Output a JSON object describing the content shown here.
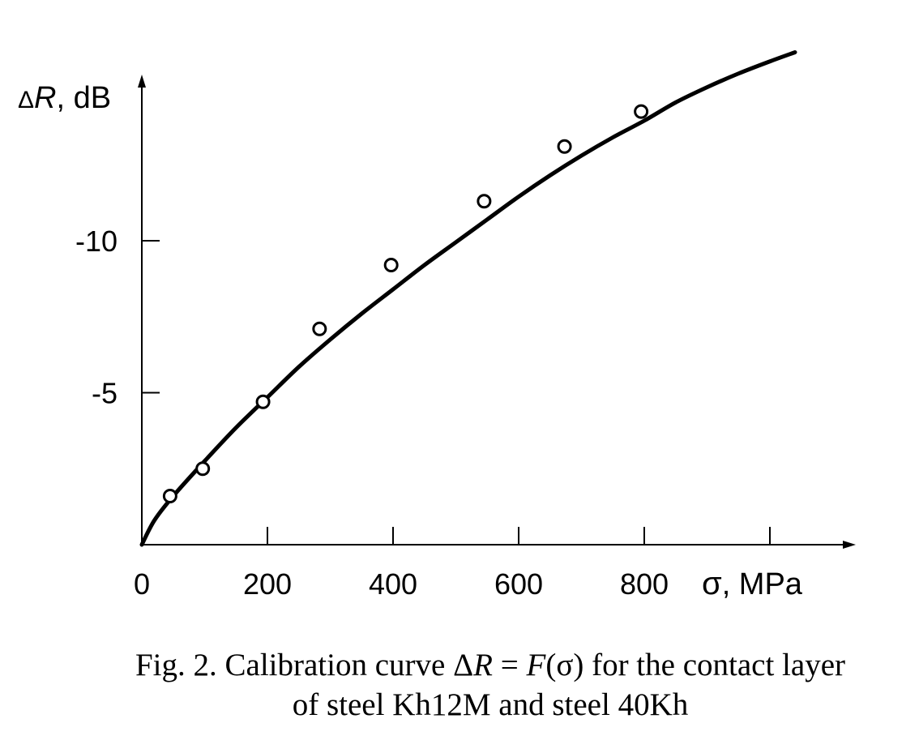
{
  "chart_data": {
    "type": "scatter",
    "x_axis": {
      "label_symbol": "σ",
      "label_unit": ", MPa",
      "ticks": [
        0,
        200,
        400,
        600,
        800,
        1000
      ],
      "tick_labels": [
        "0",
        "200",
        "400",
        "600",
        "800"
      ],
      "range": [
        0,
        1130
      ]
    },
    "y_axis": {
      "label_prefix": "Δ",
      "label_symbol": "R",
      "label_unit": ", dB",
      "ticks": [
        -5,
        -10
      ],
      "tick_labels": [
        "-5",
        "-10"
      ],
      "range": [
        0,
        -15.5
      ],
      "reversed_up": true
    },
    "points": [
      {
        "x": 45,
        "y": -1.6
      },
      {
        "x": 97,
        "y": -2.5
      },
      {
        "x": 193,
        "y": -4.7
      },
      {
        "x": 283,
        "y": -7.1
      },
      {
        "x": 397,
        "y": -9.2
      },
      {
        "x": 545,
        "y": -11.3
      },
      {
        "x": 673,
        "y": -13.1
      },
      {
        "x": 795,
        "y": -14.25
      }
    ],
    "curve": [
      {
        "x": 0,
        "y": 0
      },
      {
        "x": 20,
        "y": -0.8
      },
      {
        "x": 50,
        "y": -1.6
      },
      {
        "x": 100,
        "y": -2.75
      },
      {
        "x": 150,
        "y": -3.85
      },
      {
        "x": 200,
        "y": -4.85
      },
      {
        "x": 250,
        "y": -5.85
      },
      {
        "x": 300,
        "y": -6.75
      },
      {
        "x": 350,
        "y": -7.6
      },
      {
        "x": 400,
        "y": -8.4
      },
      {
        "x": 450,
        "y": -9.2
      },
      {
        "x": 500,
        "y": -9.95
      },
      {
        "x": 550,
        "y": -10.7
      },
      {
        "x": 600,
        "y": -11.45
      },
      {
        "x": 650,
        "y": -12.15
      },
      {
        "x": 700,
        "y": -12.8
      },
      {
        "x": 750,
        "y": -13.4
      },
      {
        "x": 800,
        "y": -13.95
      },
      {
        "x": 850,
        "y": -14.55
      },
      {
        "x": 900,
        "y": -15.05
      },
      {
        "x": 950,
        "y": -15.5
      },
      {
        "x": 1000,
        "y": -15.9
      },
      {
        "x": 1040,
        "y": -16.2
      }
    ]
  },
  "caption": {
    "line1_a": "Fig. 2. Calibration curve Δ",
    "line1_r": "R",
    "line1_b": " = ",
    "line1_f": "F",
    "line1_c": "(σ) for the contact layer",
    "line2": "of steel Kh12M and steel 40Kh"
  }
}
